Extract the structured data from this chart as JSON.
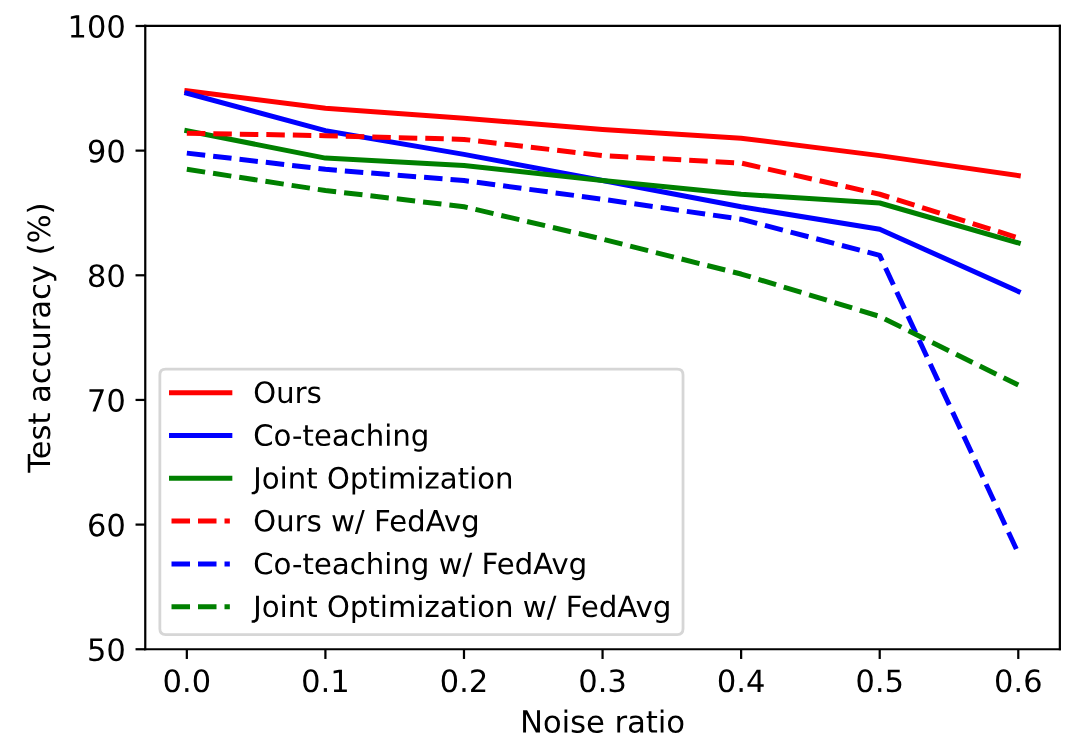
{
  "chart_data": {
    "type": "line",
    "xlabel": "Noise ratio",
    "ylabel": "Test accuracy (%)",
    "x": [
      0.0,
      0.1,
      0.2,
      0.3,
      0.4,
      0.5,
      0.6
    ],
    "series": [
      {
        "name": "Ours",
        "color": "#ff0000",
        "line_style": "solid",
        "values": [
          94.8,
          93.4,
          92.6,
          91.7,
          91.0,
          89.6,
          88.0
        ]
      },
      {
        "name": "Co-teaching",
        "color": "#0000ff",
        "line_style": "solid",
        "values": [
          94.6,
          91.6,
          89.7,
          87.6,
          85.5,
          83.7,
          78.7
        ]
      },
      {
        "name": "Joint Optimization",
        "color": "#008000",
        "line_style": "solid",
        "values": [
          91.6,
          89.4,
          88.8,
          87.6,
          86.5,
          85.8,
          82.6
        ]
      },
      {
        "name": "Ours w/ FedAvg",
        "color": "#ff0000",
        "line_style": "dashed",
        "values": [
          91.4,
          91.2,
          90.9,
          89.6,
          89.0,
          86.5,
          83.0
        ]
      },
      {
        "name": "Co-teaching w/ FedAvg",
        "color": "#0000ff",
        "line_style": "dashed",
        "values": [
          89.8,
          88.5,
          87.6,
          86.1,
          84.5,
          81.6,
          57.7
        ]
      },
      {
        "name": "Joint Optimization w/ FedAvg",
        "color": "#008000",
        "line_style": "dashed",
        "values": [
          88.5,
          86.8,
          85.5,
          82.9,
          80.1,
          76.7,
          71.2
        ]
      }
    ],
    "xlim": [
      -0.03,
      0.63
    ],
    "xticks": [
      {
        "value": 0,
        "label": "0.0"
      },
      0.1,
      0.2,
      0.3,
      0.4,
      0.5,
      0.6
    ],
    "ylim": [
      50,
      100
    ],
    "yticks": [
      50,
      60,
      70,
      80,
      90,
      100
    ],
    "grid": false,
    "legend": "bottom left",
    "marker": "none"
  }
}
